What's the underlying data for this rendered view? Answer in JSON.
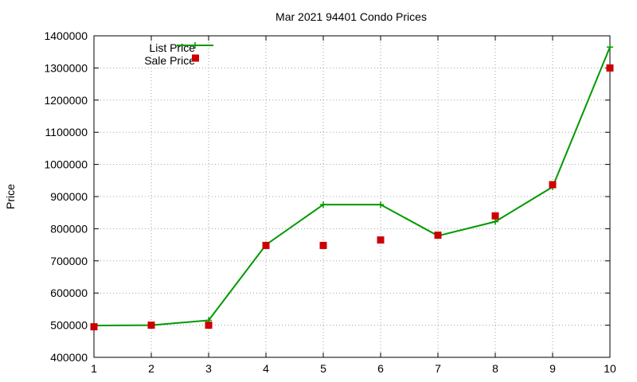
{
  "chart_data": {
    "type": "line",
    "title": "Mar 2021 94401 Condo Prices",
    "xlabel": "",
    "ylabel": "Price",
    "xlim": [
      1,
      10
    ],
    "ylim": [
      400000,
      1400000
    ],
    "x_ticks": [
      1,
      2,
      3,
      4,
      5,
      6,
      7,
      8,
      9,
      10
    ],
    "y_ticks": [
      400000,
      500000,
      600000,
      700000,
      800000,
      900000,
      1000000,
      1100000,
      1200000,
      1300000,
      1400000
    ],
    "grid": true,
    "legend_position": "top-left",
    "x": [
      1,
      2,
      3,
      4,
      5,
      6,
      7,
      8,
      9,
      10
    ],
    "series": [
      {
        "name": "List Price",
        "style": "lines+points",
        "color": "#009900",
        "values": [
          499000,
          500000,
          515000,
          750000,
          875000,
          875000,
          778000,
          822000,
          930000,
          1365000
        ]
      },
      {
        "name": "Sale Price",
        "style": "points",
        "color": "#cc0000",
        "values": [
          495000,
          500000,
          500000,
          748000,
          748000,
          765000,
          780000,
          840000,
          937000,
          1300000
        ]
      }
    ]
  }
}
